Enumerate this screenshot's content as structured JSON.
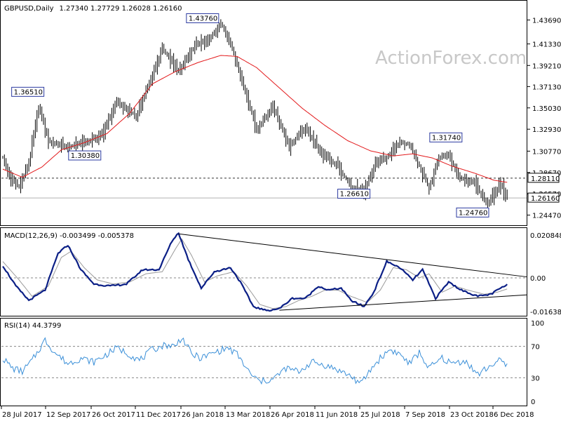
{
  "header": {
    "symbol": "GBPUSD,Daily",
    "ohlc": "1.27340 1.27729 1.26028 1.26160",
    "watermark": "ActionForex.com"
  },
  "chart_data": [
    {
      "type": "ohlc-bar",
      "panel": "price",
      "title": "GBPUSD,Daily 1.27340 1.27729 1.26028 1.26160",
      "ylim": [
        1.2354,
        1.4552
      ],
      "y_ticks": [
        "1.43690",
        "1.41330",
        "1.39210",
        "1.37130",
        "1.35030",
        "1.32930",
        "1.30770",
        "1.28670",
        "1.26570",
        "1.24470"
      ],
      "current_price_label": "1.26160",
      "reference_line_label": "1.28110",
      "series": [
        {
          "name": "close",
          "anchors": [
            [
              0,
              1.302
            ],
            [
              4,
              1.283
            ],
            [
              10,
              1.272
            ],
            [
              16,
              1.295
            ],
            [
              22,
              1.352
            ],
            [
              28,
              1.318
            ],
            [
              40,
              1.311
            ],
            [
              60,
              1.322
            ],
            [
              70,
              1.356
            ],
            [
              82,
              1.342
            ],
            [
              92,
              1.383
            ],
            [
              98,
              1.409
            ],
            [
              108,
              1.386
            ],
            [
              118,
              1.412
            ],
            [
              126,
              1.417
            ],
            [
              134,
              1.434
            ],
            [
              140,
              1.414
            ],
            [
              148,
              1.372
            ],
            [
              156,
              1.328
            ],
            [
              166,
              1.352
            ],
            [
              176,
              1.312
            ],
            [
              186,
              1.331
            ],
            [
              196,
              1.305
            ],
            [
              206,
              1.293
            ],
            [
              214,
              1.272
            ],
            [
              222,
              1.268
            ],
            [
              230,
              1.298
            ],
            [
              236,
              1.301
            ],
            [
              244,
              1.316
            ],
            [
              250,
              1.314
            ],
            [
              256,
              1.293
            ],
            [
              262,
              1.271
            ],
            [
              268,
              1.301
            ],
            [
              274,
              1.304
            ],
            [
              280,
              1.282
            ],
            [
              290,
              1.276
            ],
            [
              298,
              1.254
            ],
            [
              306,
              1.275
            ],
            [
              310,
              1.262
            ]
          ]
        },
        {
          "name": "MA",
          "color": "#e31a1c",
          "anchors": [
            [
              0,
              1.29
            ],
            [
              12,
              1.282
            ],
            [
              24,
              1.292
            ],
            [
              36,
              1.309
            ],
            [
              50,
              1.316
            ],
            [
              64,
              1.325
            ],
            [
              78,
              1.345
            ],
            [
              92,
              1.374
            ],
            [
              106,
              1.386
            ],
            [
              120,
              1.395
            ],
            [
              134,
              1.402
            ],
            [
              144,
              1.401
            ],
            [
              156,
              1.39
            ],
            [
              170,
              1.37
            ],
            [
              184,
              1.35
            ],
            [
              198,
              1.333
            ],
            [
              212,
              1.318
            ],
            [
              226,
              1.308
            ],
            [
              240,
              1.303
            ],
            [
              252,
              1.305
            ],
            [
              264,
              1.301
            ],
            [
              276,
              1.293
            ],
            [
              290,
              1.286
            ],
            [
              302,
              1.279
            ],
            [
              310,
              1.277
            ]
          ]
        }
      ],
      "annotations": [
        "1.43760",
        "1.36510",
        "1.30380",
        "1.31740",
        "1.26610",
        "1.24760"
      ]
    },
    {
      "type": "line",
      "panel": "macd",
      "title": "MACD(12,26,9) -0.003499 -0.005378",
      "ylim": [
        -0.0185,
        0.024
      ],
      "y_ticks": [
        "0.020848",
        "0.00",
        "-0.016389"
      ],
      "series": [
        {
          "name": "MACD",
          "color": "#0b1f86",
          "anchors": [
            [
              0,
              0.006
            ],
            [
              8,
              -0.004
            ],
            [
              16,
              -0.011
            ],
            [
              26,
              -0.006
            ],
            [
              34,
              0.012
            ],
            [
              40,
              0.016
            ],
            [
              48,
              0.004
            ],
            [
              56,
              -0.003
            ],
            [
              66,
              -0.004
            ],
            [
              76,
              -0.003
            ],
            [
              86,
              0.004
            ],
            [
              96,
              0.004
            ],
            [
              104,
              0.018
            ],
            [
              108,
              0.022
            ],
            [
              114,
              0.009
            ],
            [
              122,
              -0.005
            ],
            [
              130,
              0.003
            ],
            [
              140,
              0.005
            ],
            [
              146,
              -0.002
            ],
            [
              154,
              -0.014
            ],
            [
              162,
              -0.016
            ],
            [
              170,
              -0.015
            ],
            [
              178,
              -0.01
            ],
            [
              186,
              -0.01
            ],
            [
              194,
              -0.004
            ],
            [
              200,
              -0.006
            ],
            [
              208,
              -0.005
            ],
            [
              214,
              -0.011
            ],
            [
              222,
              -0.014
            ],
            [
              228,
              -0.007
            ],
            [
              236,
              0.008
            ],
            [
              244,
              0.005
            ],
            [
              252,
              -0.001
            ],
            [
              258,
              0.004
            ],
            [
              266,
              -0.01
            ],
            [
              274,
              -0.002
            ],
            [
              282,
              -0.006
            ],
            [
              292,
              -0.009
            ],
            [
              300,
              -0.008
            ],
            [
              306,
              -0.005
            ],
            [
              310,
              -0.0035
            ]
          ]
        },
        {
          "name": "Signal",
          "color": "#9a9a9a",
          "anchors": [
            [
              0,
              0.008
            ],
            [
              10,
              -0.001
            ],
            [
              18,
              -0.009
            ],
            [
              28,
              -0.004
            ],
            [
              36,
              0.01
            ],
            [
              42,
              0.013
            ],
            [
              50,
              0.005
            ],
            [
              58,
              -0.001
            ],
            [
              68,
              -0.003
            ],
            [
              78,
              -0.002
            ],
            [
              88,
              0.002
            ],
            [
              98,
              0.003
            ],
            [
              106,
              0.014
            ],
            [
              110,
              0.019
            ],
            [
              116,
              0.011
            ],
            [
              124,
              -0.002
            ],
            [
              132,
              0.001
            ],
            [
              142,
              0.003
            ],
            [
              150,
              -0.004
            ],
            [
              158,
              -0.013
            ],
            [
              166,
              -0.015
            ],
            [
              174,
              -0.014
            ],
            [
              182,
              -0.011
            ],
            [
              190,
              -0.009
            ],
            [
              198,
              -0.006
            ],
            [
              206,
              -0.006
            ],
            [
              214,
              -0.009
            ],
            [
              224,
              -0.012
            ],
            [
              232,
              -0.006
            ],
            [
              240,
              0.005
            ],
            [
              248,
              0.004
            ],
            [
              256,
              0.0
            ],
            [
              262,
              0.002
            ],
            [
              270,
              -0.007
            ],
            [
              278,
              -0.004
            ],
            [
              286,
              -0.006
            ],
            [
              296,
              -0.008
            ],
            [
              304,
              -0.007
            ],
            [
              310,
              -0.0054
            ]
          ]
        }
      ]
    },
    {
      "type": "line",
      "panel": "rsi",
      "title": "RSI(14) 44.3799",
      "ylim": [
        0,
        100
      ],
      "y_ticks": [
        "100",
        "70",
        "30",
        "0"
      ],
      "series": [
        {
          "name": "RSI",
          "color": "#3a8fd8",
          "anchors": [
            [
              0,
              55
            ],
            [
              6,
              42
            ],
            [
              12,
              38
            ],
            [
              18,
              52
            ],
            [
              26,
              78
            ],
            [
              32,
              62
            ],
            [
              40,
              48
            ],
            [
              48,
              55
            ],
            [
              56,
              50
            ],
            [
              64,
              60
            ],
            [
              70,
              68
            ],
            [
              76,
              62
            ],
            [
              84,
              52
            ],
            [
              92,
              66
            ],
            [
              100,
              72
            ],
            [
              106,
              70
            ],
            [
              110,
              82
            ],
            [
              116,
              60
            ],
            [
              122,
              55
            ],
            [
              130,
              62
            ],
            [
              138,
              68
            ],
            [
              144,
              60
            ],
            [
              152,
              35
            ],
            [
              158,
              25
            ],
            [
              166,
              28
            ],
            [
              174,
              42
            ],
            [
              182,
              38
            ],
            [
              190,
              50
            ],
            [
              198,
              46
            ],
            [
              206,
              40
            ],
            [
              214,
              32
            ],
            [
              220,
              22
            ],
            [
              226,
              40
            ],
            [
              232,
              55
            ],
            [
              238,
              66
            ],
            [
              244,
              60
            ],
            [
              250,
              48
            ],
            [
              256,
              62
            ],
            [
              262,
              42
            ],
            [
              270,
              55
            ],
            [
              276,
              48
            ],
            [
              284,
              52
            ],
            [
              292,
              34
            ],
            [
              300,
              46
            ],
            [
              306,
              52
            ],
            [
              310,
              44
            ]
          ]
        }
      ]
    }
  ],
  "x_axis": {
    "tick_labels": [
      "28 Jul 2017",
      "12 Sep 2017",
      "26 Oct 2017",
      "11 Dec 2017",
      "26 Jan 2018",
      "13 Mar 2018",
      "26 Apr 2018",
      "11 Jun 2018",
      "25 Jul 2018",
      "7 Sep 2018",
      "23 Oct 2018",
      "6 Dec 2018"
    ]
  }
}
